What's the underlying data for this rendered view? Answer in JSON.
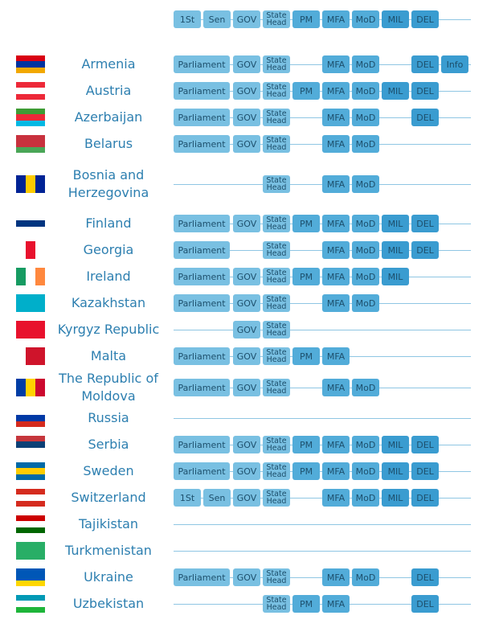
{
  "header": {
    "cells": [
      "1St",
      "Sen",
      "GOV",
      "State Head",
      "PM",
      "MFA",
      "MoD",
      "MIL",
      "DEL",
      null
    ]
  },
  "rows": [
    {
      "country": "Armenia",
      "cells": [
        "Parliament",
        null,
        "GOV",
        "State Head",
        null,
        "MFA",
        "MoD",
        null,
        "DEL",
        "Info"
      ]
    },
    {
      "country": "Austria",
      "cells": [
        "Parliament",
        null,
        "GOV",
        "State Head",
        "PM",
        "MFA",
        "MoD",
        "MIL",
        "DEL",
        null
      ]
    },
    {
      "country": "Azerbaijan",
      "cells": [
        "Parliament",
        null,
        "GOV",
        "State Head",
        null,
        "MFA",
        "MoD",
        null,
        "DEL",
        null
      ]
    },
    {
      "country": "Belarus",
      "cells": [
        "Parliament",
        null,
        "GOV",
        "State Head",
        null,
        "MFA",
        "MoD",
        null,
        null,
        null
      ]
    },
    {
      "country": "Bosnia and Herzegovina",
      "cells": [
        null,
        null,
        null,
        "State Head",
        null,
        "MFA",
        "MoD",
        null,
        null,
        null
      ]
    },
    {
      "country": "Finland",
      "cells": [
        "Parliament",
        null,
        "GOV",
        "State Head",
        "PM",
        "MFA",
        "MoD",
        "MIL",
        "DEL",
        null
      ]
    },
    {
      "country": "Georgia",
      "cells": [
        "Parliament",
        null,
        null,
        "State Head",
        null,
        "MFA",
        "MoD",
        "MIL",
        "DEL",
        null
      ]
    },
    {
      "country": "Ireland",
      "cells": [
        "Parliament",
        null,
        "GOV",
        "State Head",
        "PM",
        "MFA",
        "MoD",
        "MIL",
        null,
        null
      ]
    },
    {
      "country": "Kazakhstan",
      "cells": [
        "Parliament",
        null,
        "GOV",
        "State Head",
        null,
        "MFA",
        "MoD",
        null,
        null,
        null
      ]
    },
    {
      "country": "Kyrgyz Republic",
      "cells": [
        null,
        null,
        "GOV",
        "State Head",
        null,
        null,
        null,
        null,
        null,
        null
      ]
    },
    {
      "country": "Malta",
      "cells": [
        "Parliament",
        null,
        "GOV",
        "State Head",
        "PM",
        "MFA",
        null,
        null,
        null,
        null
      ]
    },
    {
      "country": "The Republic of Moldova",
      "cells": [
        "Parliament",
        null,
        "GOV",
        "State Head",
        null,
        "MFA",
        "MoD",
        null,
        null,
        null
      ]
    },
    {
      "country": "Russia",
      "cells": [
        null,
        null,
        null,
        null,
        null,
        null,
        null,
        null,
        null,
        null
      ]
    },
    {
      "country": "Serbia",
      "cells": [
        "Parliament",
        null,
        "GOV",
        "State Head",
        "PM",
        "MFA",
        "MoD",
        "MIL",
        "DEL",
        null
      ]
    },
    {
      "country": "Sweden",
      "cells": [
        "Parliament",
        null,
        "GOV",
        "State Head",
        "PM",
        "MFA",
        "MoD",
        "MIL",
        "DEL",
        null
      ]
    },
    {
      "country": "Switzerland",
      "cells": [
        "1St",
        "Sen",
        "GOV",
        "State Head",
        null,
        "MFA",
        "MoD",
        "MIL",
        "DEL",
        null
      ]
    },
    {
      "country": "Tajikistan",
      "cells": [
        null,
        null,
        null,
        null,
        null,
        null,
        null,
        null,
        null,
        null
      ]
    },
    {
      "country": "Turkmenistan",
      "cells": [
        null,
        null,
        null,
        null,
        null,
        null,
        null,
        null,
        null,
        null
      ]
    },
    {
      "country": "Ukraine",
      "cells": [
        "Parliament",
        null,
        "GOV",
        "State Head",
        null,
        "MFA",
        "MoD",
        null,
        "DEL",
        null
      ]
    },
    {
      "country": "Uzbekistan",
      "cells": [
        null,
        null,
        null,
        "State Head",
        "PM",
        "MFA",
        null,
        null,
        "DEL",
        null
      ]
    }
  ]
}
